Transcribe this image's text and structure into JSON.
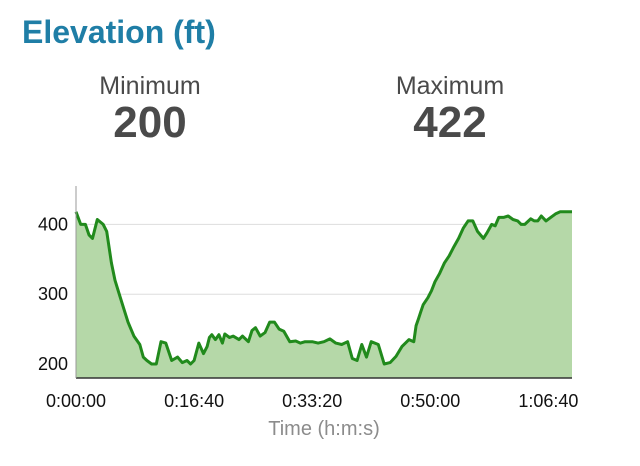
{
  "header": {
    "title": "Elevation (ft)"
  },
  "stats": {
    "minimum_label": "Minimum",
    "minimum_value": "200",
    "maximum_label": "Maximum",
    "maximum_value": "422"
  },
  "chart_data": {
    "type": "area",
    "title": "",
    "xlabel": "Time (h:m:s)",
    "ylabel": "",
    "x_unit": "seconds",
    "x_tick_labels": [
      "0:00:00",
      "0:16:40",
      "0:33:20",
      "0:50:00",
      "1:06:40"
    ],
    "x_tick_values": [
      0,
      1000,
      2000,
      3000,
      4000
    ],
    "y_tick_labels": [
      "200",
      "300",
      "400"
    ],
    "y_tick_values": [
      200,
      300,
      400
    ],
    "xlim": [
      0,
      4200
    ],
    "ylim": [
      180,
      455
    ],
    "grid": true,
    "colors": {
      "line": "#218a1c",
      "fill": "#b5d8a8",
      "grid": "#dddddd",
      "axis": "#999999"
    },
    "series": [
      {
        "x": [
          0,
          40,
          80,
          110,
          140,
          180,
          230,
          260,
          300,
          330,
          370,
          400,
          440,
          490,
          540,
          570,
          600,
          640,
          680,
          720,
          760,
          810,
          860,
          900,
          940,
          970,
          1000,
          1040,
          1080,
          1110,
          1130,
          1150,
          1180,
          1210,
          1240,
          1260,
          1300,
          1330,
          1380,
          1410,
          1460,
          1490,
          1520,
          1560,
          1600,
          1640,
          1680,
          1720,
          1760,
          1810,
          1860,
          1900,
          1940,
          2000,
          2050,
          2100,
          2150,
          2200,
          2250,
          2300,
          2340,
          2380,
          2420,
          2460,
          2500,
          2560,
          2610,
          2660,
          2710,
          2760,
          2820,
          2860,
          2880,
          2900,
          2920,
          2940,
          2980,
          3010,
          3040,
          3080,
          3120,
          3160,
          3200,
          3240,
          3280,
          3320,
          3360,
          3400,
          3450,
          3480,
          3520,
          3550,
          3580,
          3620,
          3660,
          3700,
          3740,
          3770,
          3800,
          3850,
          3880,
          3910,
          3940,
          3980,
          4020,
          4060,
          4100,
          4140,
          4180,
          4200
        ],
        "values": [
          418,
          400,
          400,
          385,
          380,
          407,
          400,
          390,
          345,
          320,
          298,
          282,
          260,
          240,
          228,
          210,
          205,
          200,
          200,
          232,
          230,
          205,
          210,
          202,
          205,
          200,
          205,
          230,
          215,
          225,
          238,
          242,
          235,
          242,
          230,
          243,
          238,
          240,
          235,
          240,
          232,
          248,
          252,
          240,
          245,
          260,
          260,
          250,
          247,
          232,
          233,
          230,
          232,
          232,
          230,
          232,
          236,
          230,
          228,
          232,
          208,
          205,
          228,
          210,
          232,
          228,
          200,
          202,
          211,
          225,
          235,
          232,
          255,
          265,
          275,
          285,
          295,
          305,
          318,
          330,
          345,
          355,
          368,
          380,
          395,
          405,
          405,
          390,
          380,
          388,
          400,
          398,
          410,
          410,
          412,
          407,
          405,
          400,
          400,
          408,
          405,
          405,
          412,
          405,
          410,
          415,
          418,
          418,
          418,
          418
        ]
      }
    ]
  }
}
